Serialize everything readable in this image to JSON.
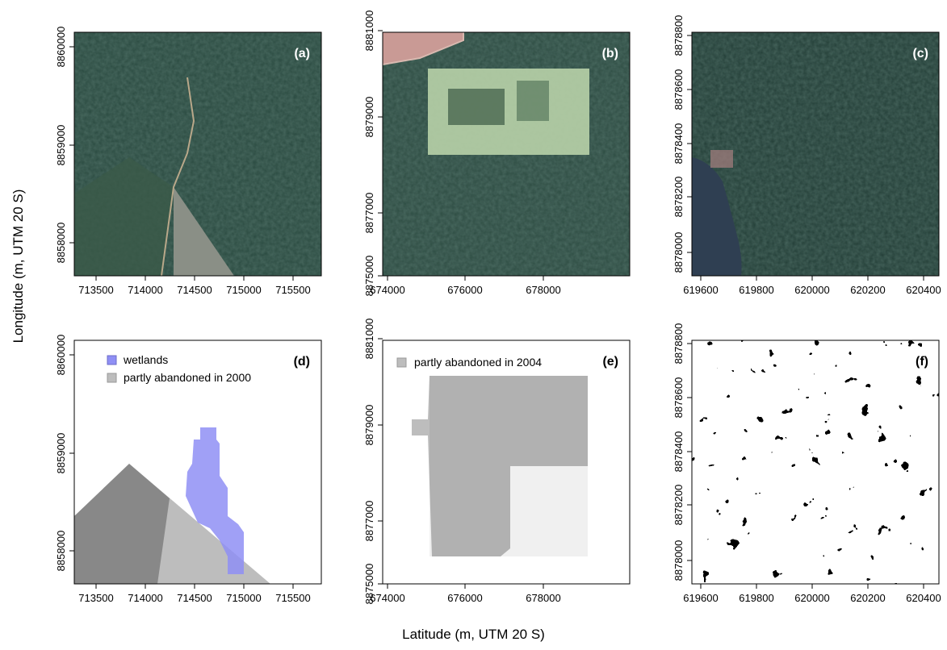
{
  "figure": {
    "ylabel": "Longitude (m, UTM 20 S)",
    "xlabel": "Latitude (m, UTM 20 S)"
  },
  "panels": [
    {
      "id": "a",
      "label": "(a)",
      "kind": "satellite",
      "x_ticks": [
        "713500",
        "714000",
        "714500",
        "715000",
        "715500"
      ],
      "y_ticks": [
        "8858000",
        "8859000",
        "8860000"
      ],
      "legend": []
    },
    {
      "id": "b",
      "label": "(b)",
      "kind": "satellite",
      "x_ticks": [
        "674000",
        "676000",
        "678000"
      ],
      "y_ticks": [
        "8875000",
        "8877000",
        "8879000",
        "8881000"
      ],
      "legend": []
    },
    {
      "id": "c",
      "label": "(c)",
      "kind": "satellite",
      "x_ticks": [
        "619600",
        "619800",
        "620000",
        "620200",
        "620400"
      ],
      "y_ticks": [
        "8878000",
        "8878200",
        "8878400",
        "8878600",
        "8878800"
      ],
      "legend": []
    },
    {
      "id": "d",
      "label": "(d)",
      "kind": "classified",
      "x_ticks": [
        "713500",
        "714000",
        "714500",
        "715000",
        "715500"
      ],
      "y_ticks": [
        "8858000",
        "8859000",
        "8860000"
      ],
      "legend": [
        {
          "text": "wetlands",
          "color": "#8f8ff5"
        },
        {
          "text": "partly abandoned in 2000",
          "color": "#bdbdbd"
        }
      ]
    },
    {
      "id": "e",
      "label": "(e)",
      "kind": "classified",
      "x_ticks": [
        "674000",
        "676000",
        "678000"
      ],
      "y_ticks": [
        "8875000",
        "8877000",
        "8879000",
        "8881000"
      ],
      "legend": [
        {
          "text": "partly abandoned in 2004",
          "color": "#bdbdbd"
        }
      ]
    },
    {
      "id": "f",
      "label": "(f)",
      "kind": "classified",
      "x_ticks": [
        "619600",
        "619800",
        "620000",
        "620200",
        "620400"
      ],
      "y_ticks": [
        "8878000",
        "8878200",
        "8878400",
        "8878600",
        "8878800"
      ],
      "legend": []
    }
  ],
  "colors": {
    "forest": "#2a4a40",
    "forest_dark": "#1f3a33",
    "water": "#2f3f52",
    "clearing": "#d9e8c8",
    "abandoned": "#bdbdbd",
    "wetlands": "#8f8ff5"
  }
}
